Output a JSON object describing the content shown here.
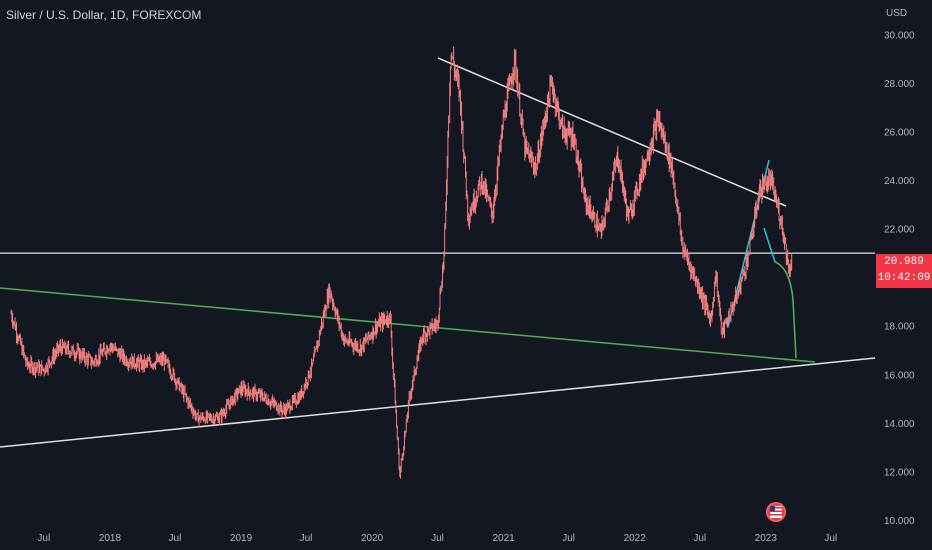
{
  "header": {
    "title": "Silver / U.S. Dollar, 1D, FOREXCOM"
  },
  "price_tag": {
    "price": "20.989",
    "countdown": "10:42:09"
  },
  "event_icon": "us-flag-icon",
  "colors": {
    "background": "#131722",
    "candle": "#f08080",
    "trend_white": "#e0e0e0",
    "trend_green": "#4caf50",
    "trend_teal": "#26c6da",
    "price_tag": "#f23645"
  },
  "chart_data": {
    "type": "line",
    "title": "Silver / U.S. Dollar, 1D, FOREXCOM",
    "ylabel": "USD",
    "currency_label": "USD",
    "ylim": [
      10,
      31
    ],
    "y_ticks": [
      "30.000",
      "28.000",
      "26.000",
      "24.000",
      "22.000",
      "20.000",
      "18.000",
      "16.000",
      "14.000",
      "12.000",
      "10.000"
    ],
    "x_ticks": [
      {
        "label": "Jul",
        "date": "2017-07-01"
      },
      {
        "label": "2018",
        "date": "2018-01-01"
      },
      {
        "label": "Jul",
        "date": "2018-07-01"
      },
      {
        "label": "2019",
        "date": "2019-01-01"
      },
      {
        "label": "Jul",
        "date": "2019-07-01"
      },
      {
        "label": "2020",
        "date": "2020-01-01"
      },
      {
        "label": "Jul",
        "date": "2020-07-01"
      },
      {
        "label": "2021",
        "date": "2021-01-01"
      },
      {
        "label": "Jul",
        "date": "2021-07-01"
      },
      {
        "label": "2022",
        "date": "2022-01-01"
      },
      {
        "label": "Jul",
        "date": "2022-07-01"
      },
      {
        "label": "2023",
        "date": "2023-01-01"
      },
      {
        "label": "Jul",
        "date": "2023-07-01"
      }
    ],
    "series": [
      {
        "values": [
          [
            "2017-04-01",
            18.5
          ],
          [
            "2017-05-15",
            16.4
          ],
          [
            "2017-07-01",
            16.2
          ],
          [
            "2017-08-15",
            17.1
          ],
          [
            "2017-10-01",
            16.9
          ],
          [
            "2017-11-15",
            16.5
          ],
          [
            "2018-01-01",
            17.2
          ],
          [
            "2018-02-15",
            16.6
          ],
          [
            "2018-04-01",
            16.4
          ],
          [
            "2018-06-01",
            16.6
          ],
          [
            "2018-07-15",
            15.5
          ],
          [
            "2018-09-01",
            14.2
          ],
          [
            "2018-11-01",
            14.2
          ],
          [
            "2019-01-01",
            15.4
          ],
          [
            "2019-03-01",
            15.1
          ],
          [
            "2019-05-01",
            14.5
          ],
          [
            "2019-06-15",
            15.1
          ],
          [
            "2019-07-20",
            16.4
          ],
          [
            "2019-09-04",
            19.5
          ],
          [
            "2019-10-15",
            17.4
          ],
          [
            "2019-12-01",
            17.1
          ],
          [
            "2020-01-15",
            18.0
          ],
          [
            "2020-02-20",
            18.4
          ],
          [
            "2020-03-18",
            11.8
          ],
          [
            "2020-04-15",
            15.1
          ],
          [
            "2020-05-20",
            17.6
          ],
          [
            "2020-07-01",
            18.1
          ],
          [
            "2020-07-20",
            21.0
          ],
          [
            "2020-08-07",
            29.3
          ],
          [
            "2020-09-01",
            27.6
          ],
          [
            "2020-09-25",
            22.5
          ],
          [
            "2020-11-01",
            24.0
          ],
          [
            "2020-12-01",
            22.6
          ],
          [
            "2021-01-01",
            26.5
          ],
          [
            "2021-02-01",
            29.0
          ],
          [
            "2021-03-01",
            25.3
          ],
          [
            "2021-04-01",
            24.5
          ],
          [
            "2021-05-15",
            28.0
          ],
          [
            "2021-06-15",
            26.0
          ],
          [
            "2021-07-15",
            25.8
          ],
          [
            "2021-08-15",
            23.2
          ],
          [
            "2021-09-30",
            21.8
          ],
          [
            "2021-11-15",
            25.0
          ],
          [
            "2021-12-15",
            22.4
          ],
          [
            "2022-01-15",
            24.0
          ],
          [
            "2022-03-08",
            26.5
          ],
          [
            "2022-04-15",
            24.5
          ],
          [
            "2022-05-15",
            21.2
          ],
          [
            "2022-07-01",
            19.5
          ],
          [
            "2022-08-01",
            18.2
          ],
          [
            "2022-08-15",
            20.2
          ],
          [
            "2022-09-01",
            17.7
          ],
          [
            "2022-10-15",
            19.3
          ],
          [
            "2022-11-15",
            21.0
          ],
          [
            "2022-12-15",
            23.6
          ],
          [
            "2023-01-15",
            24.0
          ],
          [
            "2023-02-15",
            22.2
          ],
          [
            "2023-03-08",
            20.2
          ],
          [
            "2023-03-15",
            20.99
          ]
        ]
      }
    ],
    "reference_line": {
      "price": 20.989
    }
  }
}
